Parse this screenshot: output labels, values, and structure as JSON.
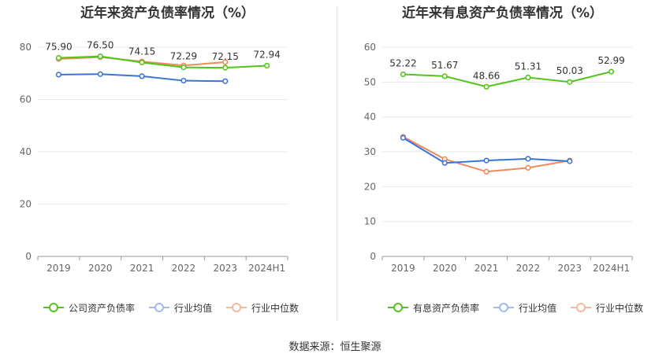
{
  "source_text": "数据来源：恒生聚源",
  "chart_data": [
    {
      "type": "line",
      "title": "近年来资产负债率情况（%）",
      "categories": [
        "2019",
        "2020",
        "2021",
        "2022",
        "2023",
        "2024H1"
      ],
      "ylim": [
        0,
        80
      ],
      "yticks": [
        0,
        20,
        40,
        60,
        80
      ],
      "grid": true,
      "legend_position": "bottom",
      "series": [
        {
          "name": "公司资产负债率",
          "color": "#52c41a",
          "values": [
            75.9,
            76.5,
            74.15,
            72.29,
            72.15,
            72.94
          ],
          "labels": [
            "75.90",
            "76.50",
            "74.15",
            "72.29",
            "72.15",
            "72.94"
          ]
        },
        {
          "name": "行业均值",
          "color": "#3a75d6",
          "values": [
            69.5,
            69.7,
            68.9,
            67.2,
            67.0,
            null
          ]
        },
        {
          "name": "行业中位数",
          "color": "#f08a5d",
          "values": [
            75.5,
            76.2,
            74.5,
            73.0,
            74.3,
            null
          ]
        }
      ]
    },
    {
      "type": "line",
      "title": "近年来有息资产负债率情况（%）",
      "categories": [
        "2019",
        "2020",
        "2021",
        "2022",
        "2023",
        "2024H1"
      ],
      "ylim": [
        0,
        60
      ],
      "yticks": [
        0,
        10,
        20,
        30,
        40,
        50,
        60
      ],
      "grid": true,
      "legend_position": "bottom",
      "series": [
        {
          "name": "有息资产负债率",
          "color": "#52c41a",
          "values": [
            52.22,
            51.67,
            48.66,
            51.31,
            50.03,
            52.99
          ],
          "labels": [
            "52.22",
            "51.67",
            "48.66",
            "51.31",
            "50.03",
            "52.99"
          ]
        },
        {
          "name": "行业均值",
          "color": "#3a75d6",
          "values": [
            34.0,
            26.8,
            27.5,
            28.0,
            27.3,
            null
          ]
        },
        {
          "name": "行业中位数",
          "color": "#f08a5d",
          "values": [
            34.3,
            27.9,
            24.3,
            25.4,
            27.5,
            null
          ]
        }
      ]
    }
  ]
}
